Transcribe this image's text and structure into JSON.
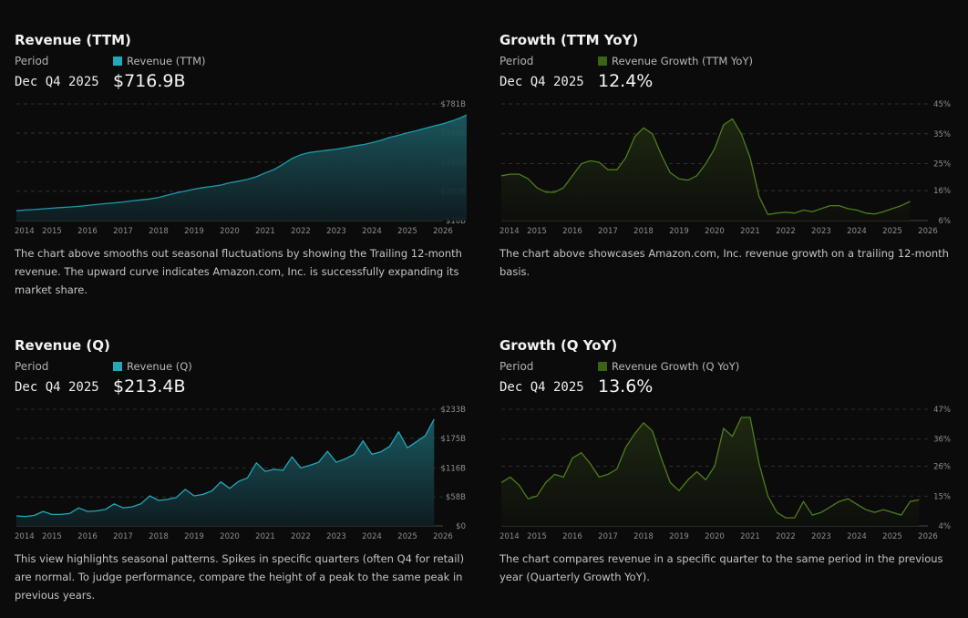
{
  "x_ticks": [
    "2014",
    "2015",
    "2016",
    "2017",
    "2018",
    "2019",
    "2020",
    "2021",
    "2022",
    "2023",
    "2024",
    "2025",
    "2026"
  ],
  "panels": [
    {
      "title": "Revenue (TTM)",
      "period_label": "Period",
      "period_value": "Dec Q4 2025",
      "legend": "Revenue (TTM)",
      "value": "$716.9B",
      "description": "The chart above smooths out seasonal fluctuations by showing the Trailing 12-month revenue. The upward curve indicates Amazon.com, Inc. is successfully expanding its market share.",
      "color": "#22a8b8"
    },
    {
      "title": "Growth (TTM YoY)",
      "period_label": "Period",
      "period_value": "Dec Q4 2025",
      "legend": "Revenue Growth (TTM YoY)",
      "value": "12.4%",
      "description": "The chart above showcases Amazon.com, Inc. revenue growth on a trailing 12-month basis.",
      "color": "#4a7a1a"
    },
    {
      "title": "Revenue (Q)",
      "period_label": "Period",
      "period_value": "Dec Q4 2025",
      "legend": "Revenue (Q)",
      "value": "$213.4B",
      "description": "This view highlights seasonal patterns. Spikes in specific quarters (often Q4 for retail) are normal. To judge performance, compare the height of a peak to the same peak in previous years.",
      "color": "#22a8b8"
    },
    {
      "title": "Growth (Q YoY)",
      "period_label": "Period",
      "period_value": "Dec Q4 2025",
      "legend": "Revenue Growth (Q YoY)",
      "value": "13.6%",
      "description": "The chart compares revenue in a specific quarter to the same period in the previous year (Quarterly Growth YoY).",
      "color": "#4a7a1a"
    }
  ],
  "chart_data": [
    {
      "type": "area",
      "title": "Revenue (TTM)",
      "x_start": 2014.0,
      "x_step": 0.25,
      "xlim": [
        2014,
        2026
      ],
      "ylim": [
        10,
        781
      ],
      "y_ticks": [
        "$781B",
        "$588B",
        "$396B",
        "$203B",
        "$10B"
      ],
      "y_tick_values": [
        781,
        588,
        396,
        203,
        10
      ],
      "values": [
        75,
        80,
        83,
        88,
        92,
        96,
        100,
        104,
        110,
        116,
        122,
        127,
        133,
        140,
        147,
        153,
        163,
        178,
        193,
        205,
        218,
        228,
        236,
        245,
        260,
        270,
        282,
        300,
        325,
        348,
        382,
        420,
        445,
        460,
        468,
        475,
        482,
        492,
        503,
        512,
        525,
        540,
        560,
        574,
        590,
        604,
        620,
        636,
        650,
        668,
        690,
        716.9
      ],
      "line_color": "#1f9aa8",
      "fill_top": "#1c5a62",
      "fill_bottom": "#0e1e22"
    },
    {
      "type": "area",
      "title": "Growth (TTM YoY)",
      "x_start": 2014.0,
      "x_step": 0.25,
      "xlim": [
        2014,
        2026
      ],
      "ylim": [
        6,
        45
      ],
      "y_ticks": [
        "45%",
        "35%",
        "25%",
        "16%",
        "6%"
      ],
      "y_tick_values": [
        45,
        35,
        25,
        16,
        6
      ],
      "values": [
        21,
        21.5,
        21.5,
        20,
        17,
        15.5,
        15.5,
        17,
        21,
        25,
        26,
        25.5,
        23,
        23,
        27,
        34,
        37,
        35,
        28,
        22,
        20,
        19.5,
        21,
        25,
        30,
        38,
        40,
        35,
        27,
        14,
        8,
        8.5,
        8.8,
        8.5,
        9.5,
        9,
        10,
        11,
        11,
        10,
        9.5,
        8.5,
        8.2,
        9,
        10,
        11,
        12.4
      ],
      "line_color": "#4f7d1b",
      "fill_top": "#1f2a12",
      "fill_bottom": "#0d0f0b"
    },
    {
      "type": "area",
      "title": "Revenue (Q)",
      "x_start": 2014.0,
      "x_step": 0.25,
      "xlim": [
        2014,
        2026
      ],
      "ylim": [
        0,
        233
      ],
      "y_ticks": [
        "$233B",
        "$175B",
        "$116B",
        "$58B",
        "$0"
      ],
      "y_tick_values": [
        233,
        175,
        116,
        58,
        0
      ],
      "values": [
        20,
        19,
        21,
        29,
        23,
        23,
        25,
        36,
        29,
        30,
        33,
        44,
        36,
        38,
        44,
        60,
        51,
        53,
        57,
        73,
        60,
        63,
        70,
        88,
        75,
        89,
        96,
        126,
        109,
        113,
        111,
        138,
        116,
        121,
        127,
        149,
        127,
        134,
        143,
        170,
        143,
        148,
        159,
        188,
        156,
        168,
        180,
        213.4
      ],
      "line_color": "#24a6b5",
      "fill_top": "#1b5d66",
      "fill_bottom": "#0e1e22"
    },
    {
      "type": "area",
      "title": "Growth (Q YoY)",
      "x_start": 2014.0,
      "x_step": 0.25,
      "xlim": [
        2014,
        2026
      ],
      "ylim": [
        4,
        47
      ],
      "y_ticks": [
        "47%",
        "36%",
        "26%",
        "15%",
        "4%"
      ],
      "y_tick_values": [
        47,
        36,
        26,
        15,
        4
      ],
      "values": [
        20,
        22,
        19,
        14,
        15,
        20,
        23,
        22,
        29,
        31,
        27,
        22,
        23,
        25,
        33,
        38,
        42,
        39,
        29,
        20,
        17,
        21,
        24,
        21,
        26,
        40,
        37,
        44,
        44,
        27,
        15,
        9,
        7,
        7,
        13,
        8,
        9,
        11,
        13,
        14,
        12,
        10,
        9,
        10,
        9,
        8,
        13,
        13.6
      ],
      "line_color": "#4f7d1b",
      "fill_top": "#1f2a12",
      "fill_bottom": "#0d0f0b"
    }
  ]
}
